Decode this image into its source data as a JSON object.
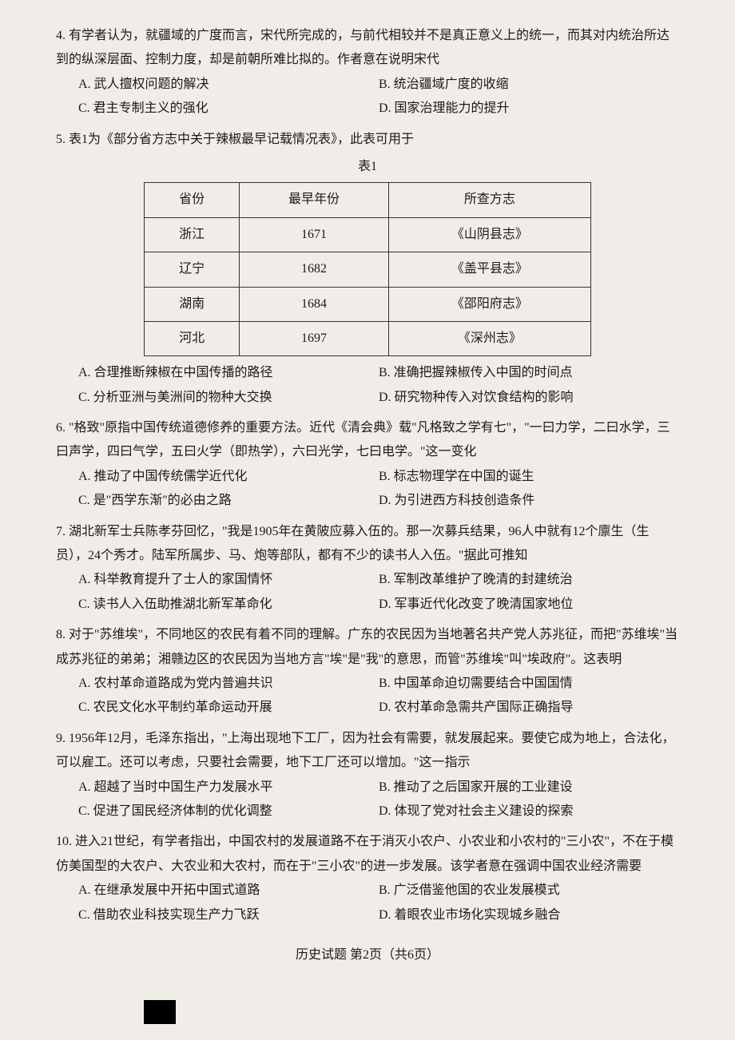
{
  "questions": {
    "q4": {
      "num": "4.",
      "text": "有学者认为，就疆域的广度而言，宋代所完成的，与前代相较并不是真正意义上的统一，而其对内统治所达到的纵深层面、控制力度，却是前朝所难比拟的。作者意在说明宋代",
      "opts": {
        "a": "A. 武人擅权问题的解决",
        "b": "B. 统治疆域广度的收缩",
        "c": "C. 君主专制主义的强化",
        "d": "D. 国家治理能力的提升"
      }
    },
    "q5": {
      "num": "5.",
      "text": "表1为《部分省方志中关于辣椒最早记载情况表》，此表可用于",
      "table": {
        "title": "表1",
        "headers": [
          "省份",
          "最早年份",
          "所查方志"
        ],
        "rows": [
          [
            "浙江",
            "1671",
            "《山阴县志》"
          ],
          [
            "辽宁",
            "1682",
            "《盖平县志》"
          ],
          [
            "湖南",
            "1684",
            "《邵阳府志》"
          ],
          [
            "河北",
            "1697",
            "《深州志》"
          ]
        ],
        "col_widths": [
          "28%",
          "32%",
          "40%"
        ],
        "border_color": "#333333",
        "bg_color": "#f0ede8"
      },
      "opts": {
        "a": "A. 合理推断辣椒在中国传播的路径",
        "b": "B. 准确把握辣椒传入中国的时间点",
        "c": "C. 分析亚洲与美洲间的物种大交换",
        "d": "D. 研究物种传入对饮食结构的影响"
      }
    },
    "q6": {
      "num": "6.",
      "text": "\"格致\"原指中国传统道德修养的重要方法。近代《清会典》载\"凡格致之学有七\"，\"一曰力学，二曰水学，三曰声学，四曰气学，五曰火学（即热学），六曰光学，七曰电学。\"这一变化",
      "opts": {
        "a": "A. 推动了中国传统儒学近代化",
        "b": "B. 标志物理学在中国的诞生",
        "c": "C. 是\"西学东渐\"的必由之路",
        "d": "D. 为引进西方科技创造条件"
      }
    },
    "q7": {
      "num": "7.",
      "text": "湖北新军士兵陈孝芬回忆，\"我是1905年在黄陂应募入伍的。那一次募兵结果，96人中就有12个廪生（生员），24个秀才。陆军所属步、马、炮等部队，都有不少的读书人入伍。\"据此可推知",
      "opts": {
        "a": "A. 科举教育提升了士人的家国情怀",
        "b": "B. 军制改革维护了晚清的封建统治",
        "c": "C. 读书人入伍助推湖北新军革命化",
        "d": "D. 军事近代化改变了晚清国家地位"
      }
    },
    "q8": {
      "num": "8.",
      "text": "对于\"苏维埃\"，不同地区的农民有着不同的理解。广东的农民因为当地著名共产党人苏兆征，而把\"苏维埃\"当成苏兆征的弟弟；湘赣边区的农民因为当地方言\"埃\"是\"我\"的意思，而管\"苏维埃\"叫\"埃政府\"。这表明",
      "opts": {
        "a": "A. 农村革命道路成为党内普遍共识",
        "b": "B. 中国革命迫切需要结合中国国情",
        "c": "C. 农民文化水平制约革命运动开展",
        "d": "D. 农村革命急需共产国际正确指导"
      }
    },
    "q9": {
      "num": "9.",
      "text": "1956年12月，毛泽东指出，\"上海出现地下工厂，因为社会有需要，就发展起来。要使它成为地上，合法化，可以雇工。还可以考虑，只要社会需要，地下工厂还可以增加。\"这一指示",
      "opts": {
        "a": "A. 超越了当时中国生产力发展水平",
        "b": "B. 推动了之后国家开展的工业建设",
        "c": "C. 促进了国民经济体制的优化调整",
        "d": "D. 体现了党对社会主义建设的探索"
      }
    },
    "q10": {
      "num": "10.",
      "text": "进入21世纪，有学者指出，中国农村的发展道路不在于消灭小农户、小农业和小农村的\"三小农\"，不在于模仿美国型的大农户、大农业和大农村，而在于\"三小农\"的进一步发展。该学者意在强调中国农业经济需要",
      "opts": {
        "a": "A. 在继承发展中开拓中国式道路",
        "b": "B. 广泛借鉴他国的农业发展模式",
        "c": "C. 借助农业科技实现生产力飞跃",
        "d": "D. 着眼农业市场化实现城乡融合"
      }
    }
  },
  "footer": "历史试题  第2页（共6页）",
  "colors": {
    "background": "#f0ede8",
    "text": "#1a1a1a",
    "table_border": "#333333"
  },
  "typography": {
    "body_fontsize": 16,
    "line_height": 1.9,
    "font_family": "SimSun"
  }
}
